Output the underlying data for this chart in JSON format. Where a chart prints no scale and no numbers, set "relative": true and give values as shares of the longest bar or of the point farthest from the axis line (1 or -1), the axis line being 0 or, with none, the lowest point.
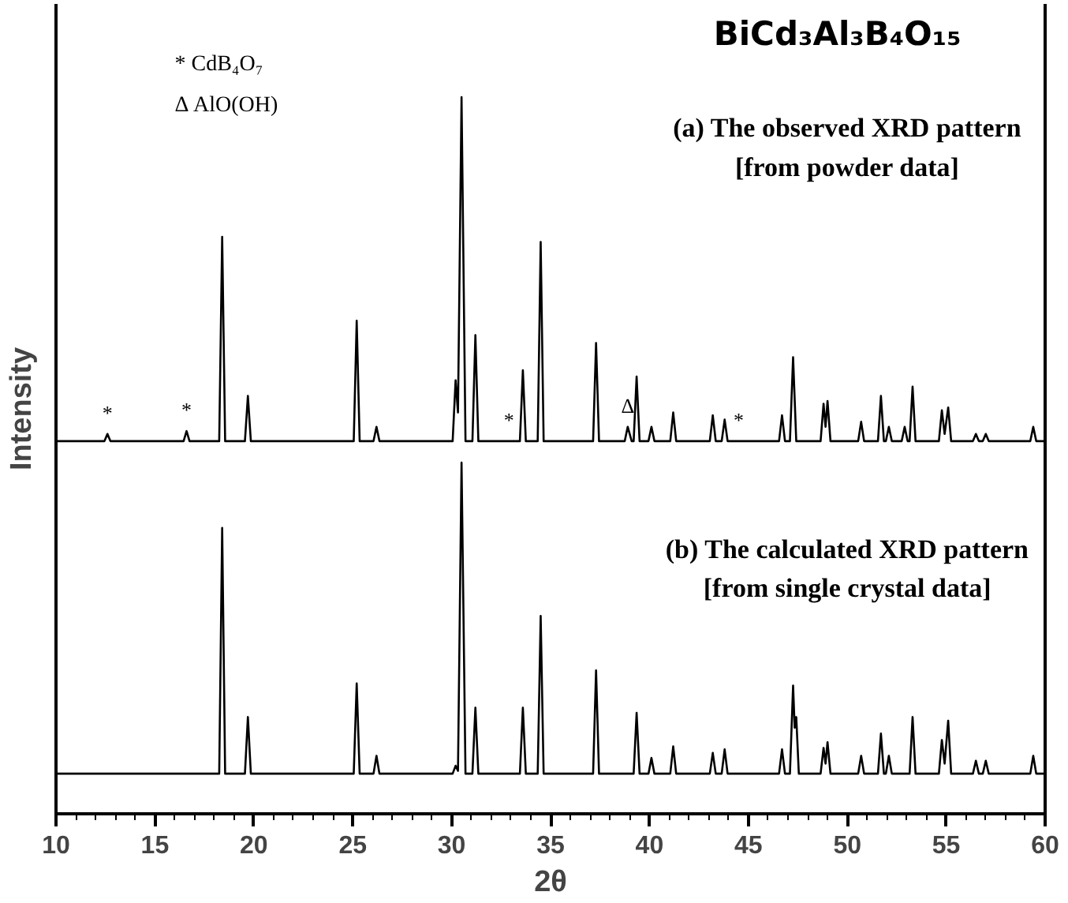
{
  "chart_data": {
    "type": "line",
    "relative": true,
    "title": "BiCd₃Al₃B₄O₁₅",
    "xlabel": "2θ",
    "ylabel": "Intensity",
    "xlim": [
      10,
      60
    ],
    "xticks": [
      10,
      15,
      20,
      25,
      30,
      35,
      40,
      45,
      50,
      55,
      60
    ],
    "grid": false,
    "marker": "none",
    "line_style": "solid",
    "annotations": [
      "* CdB₄O₇",
      "Δ AlO(OH)",
      "(a) The observed XRD pattern\n[from powder data]",
      "(b) The calculated XRD pattern\n[from single crystal data]",
      {
        "text": "*",
        "x": 12.6,
        "y": 0.53
      },
      {
        "text": "*",
        "x": 16.6,
        "y": 0.534
      },
      {
        "text": "*",
        "x": 33.45,
        "y": 0.52
      },
      {
        "text": "Δ",
        "x": 38.9,
        "y": 0.54
      },
      {
        "text": "*",
        "x": 43.95,
        "y": 0.52
      }
    ],
    "series": [
      {
        "color": "#000000",
        "x": [
          10,
          12.45,
          12.6,
          12.75,
          16.45,
          16.6,
          16.75,
          18.25,
          18.4,
          18.55,
          19.55,
          19.7,
          19.85,
          25.05,
          25.2,
          25.35,
          26.05,
          26.2,
          26.35,
          30.05,
          30.2,
          30.32,
          30.5,
          30.7,
          31.05,
          31.2,
          31.35,
          33.45,
          33.6,
          33.75,
          34.35,
          34.5,
          34.65,
          37.15,
          37.3,
          37.45,
          38.75,
          38.9,
          39.1,
          39.2,
          39.35,
          39.5,
          39.95,
          40.1,
          40.25,
          41.05,
          41.2,
          41.35,
          43.05,
          43.2,
          43.35,
          43.65,
          43.8,
          43.95,
          46.55,
          46.7,
          46.85,
          47.1,
          47.26,
          47.42,
          48.65,
          48.8,
          48.9,
          49.0,
          49.15,
          50.55,
          50.7,
          50.85,
          51.55,
          51.7,
          51.85,
          51.95,
          52.1,
          52.25,
          52.75,
          52.9,
          53.05,
          53.15,
          53.3,
          53.45,
          54.63,
          54.78,
          54.92,
          55.1,
          55.25,
          56.35,
          56.5,
          56.65,
          56.85,
          57.0,
          57.15,
          59.25,
          59.4,
          59.55,
          60
        ],
        "values": [
          0.52,
          0.52,
          0.53,
          0.52,
          0.52,
          0.534,
          0.52,
          0.52,
          0.805,
          0.52,
          0.52,
          0.583,
          0.52,
          0.52,
          0.688,
          0.52,
          0.52,
          0.54,
          0.52,
          0.52,
          0.605,
          0.56,
          1.0,
          0.52,
          0.52,
          0.668,
          0.52,
          0.52,
          0.619,
          0.52,
          0.52,
          0.798,
          0.52,
          0.52,
          0.657,
          0.52,
          0.52,
          0.54,
          0.52,
          0.52,
          0.61,
          0.52,
          0.52,
          0.54,
          0.52,
          0.52,
          0.56,
          0.52,
          0.52,
          0.556,
          0.52,
          0.52,
          0.55,
          0.52,
          0.52,
          0.556,
          0.52,
          0.52,
          0.637,
          0.52,
          0.52,
          0.572,
          0.54,
          0.576,
          0.52,
          0.52,
          0.547,
          0.52,
          0.52,
          0.583,
          0.52,
          0.52,
          0.54,
          0.52,
          0.52,
          0.54,
          0.52,
          0.52,
          0.596,
          0.52,
          0.52,
          0.563,
          0.53,
          0.567,
          0.52,
          0.52,
          0.53,
          0.52,
          0.52,
          0.53,
          0.52,
          0.52,
          0.54,
          0.52,
          0.52
        ]
      },
      {
        "color": "#000000",
        "x": [
          10,
          18.25,
          18.4,
          18.55,
          19.55,
          19.7,
          19.85,
          25.05,
          25.2,
          25.35,
          26.05,
          26.2,
          26.35,
          30.05,
          30.2,
          30.32,
          30.5,
          30.7,
          31.05,
          31.2,
          31.35,
          33.45,
          33.6,
          33.75,
          34.35,
          34.5,
          34.65,
          37.15,
          37.3,
          37.45,
          39.2,
          39.35,
          39.5,
          39.95,
          40.1,
          40.25,
          41.05,
          41.2,
          41.35,
          43.05,
          43.2,
          43.35,
          43.65,
          43.8,
          43.95,
          46.55,
          46.7,
          46.85,
          47.1,
          47.26,
          47.34,
          47.42,
          47.55,
          48.65,
          48.8,
          48.9,
          49.0,
          49.15,
          50.55,
          50.7,
          50.85,
          51.55,
          51.7,
          51.85,
          51.95,
          52.1,
          52.25,
          53.15,
          53.3,
          53.45,
          54.63,
          54.78,
          54.92,
          55.1,
          55.25,
          56.35,
          56.5,
          56.65,
          56.85,
          57.0,
          57.15,
          59.25,
          59.4,
          59.55,
          60
        ],
        "values": [
          0.056,
          0.056,
          0.399,
          0.056,
          0.056,
          0.135,
          0.056,
          0.056,
          0.182,
          0.056,
          0.056,
          0.081,
          0.056,
          0.056,
          0.067,
          0.06,
          0.49,
          0.056,
          0.056,
          0.148,
          0.056,
          0.056,
          0.148,
          0.056,
          0.056,
          0.276,
          0.056,
          0.056,
          0.2,
          0.056,
          0.056,
          0.141,
          0.056,
          0.056,
          0.078,
          0.056,
          0.056,
          0.094,
          0.056,
          0.056,
          0.085,
          0.056,
          0.056,
          0.09,
          0.056,
          0.056,
          0.09,
          0.056,
          0.056,
          0.179,
          0.12,
          0.135,
          0.056,
          0.056,
          0.092,
          0.07,
          0.1,
          0.056,
          0.056,
          0.081,
          0.056,
          0.056,
          0.112,
          0.056,
          0.056,
          0.081,
          0.056,
          0.056,
          0.135,
          0.056,
          0.056,
          0.103,
          0.07,
          0.13,
          0.056,
          0.056,
          0.074,
          0.056,
          0.056,
          0.074,
          0.056,
          0.056,
          0.081,
          0.056,
          0.056
        ]
      }
    ]
  }
}
